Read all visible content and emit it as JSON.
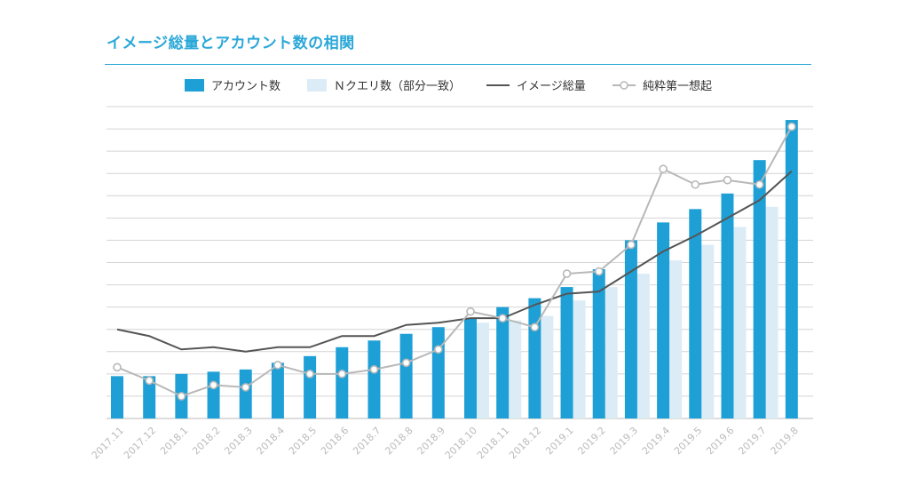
{
  "title": "イメージ総量とアカウント数の相関",
  "colors": {
    "accent": "#2ba8d8",
    "accounts": "#1ea0d6",
    "queries": "#dcecf7",
    "volume": "#555555",
    "recall": "#b8b8b8",
    "grid": "#d4d4d4"
  },
  "chart_data": {
    "type": "bar",
    "title": "イメージ総量とアカウント数の相関",
    "xlabel": "",
    "ylabel": "",
    "ylim": [
      0,
      14
    ],
    "grid": true,
    "legend_position": "top",
    "categories": [
      "2017.11",
      "2017.12",
      "2018.1",
      "2018.2",
      "2018.3",
      "2018.4",
      "2018.5",
      "2018.6",
      "2018.7",
      "2018.8",
      "2018.9",
      "2018.10",
      "2018.11",
      "2018.12",
      "2019.1",
      "2019.2",
      "2019.3",
      "2019.4",
      "2019.5",
      "2019.6",
      "2019.7",
      "2019.8"
    ],
    "series": [
      {
        "name": "アカウント数",
        "kind": "bar",
        "color": "#1ea0d6",
        "values": [
          1.9,
          1.9,
          2.0,
          2.1,
          2.2,
          2.5,
          2.8,
          3.2,
          3.5,
          3.8,
          4.1,
          4.5,
          5.0,
          5.4,
          5.9,
          6.7,
          8.0,
          8.8,
          9.4,
          10.1,
          11.6,
          13.4
        ]
      },
      {
        "name": "Ｎクエリ数（部分一致）",
        "kind": "bar",
        "color": "#dcecf7",
        "values": [
          null,
          null,
          null,
          null,
          null,
          null,
          null,
          null,
          null,
          null,
          null,
          4.3,
          4.4,
          4.6,
          5.3,
          5.9,
          6.5,
          7.1,
          7.8,
          8.6,
          9.5,
          null
        ]
      },
      {
        "name": "イメージ総量",
        "kind": "line",
        "color": "#555555",
        "values": [
          4.0,
          3.7,
          3.1,
          3.2,
          3.0,
          3.2,
          3.2,
          3.7,
          3.7,
          4.2,
          4.3,
          4.5,
          4.5,
          5.1,
          5.6,
          5.7,
          6.6,
          7.5,
          8.2,
          9.0,
          9.8,
          11.1
        ]
      },
      {
        "name": "純粋第一想起",
        "kind": "line-marker",
        "color": "#b8b8b8",
        "values": [
          2.3,
          1.7,
          1.0,
          1.5,
          1.4,
          2.4,
          2.0,
          2.0,
          2.2,
          2.5,
          3.1,
          4.8,
          4.5,
          4.1,
          6.5,
          6.6,
          7.8,
          11.2,
          10.5,
          10.7,
          10.5,
          13.1
        ]
      }
    ]
  }
}
